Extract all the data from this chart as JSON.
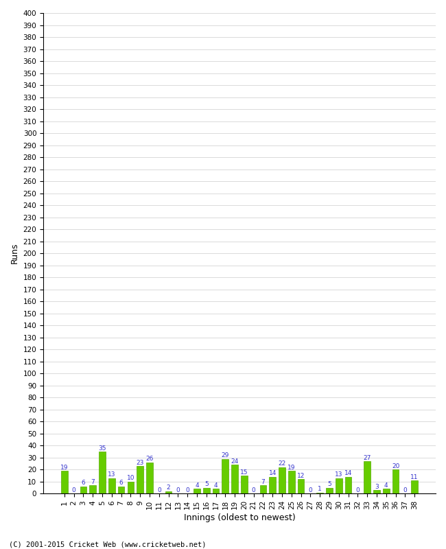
{
  "values": [
    19,
    0,
    6,
    7,
    35,
    13,
    6,
    10,
    23,
    26,
    0,
    2,
    0,
    0,
    4,
    5,
    4,
    29,
    24,
    15,
    0,
    7,
    14,
    22,
    19,
    12,
    0,
    1,
    5,
    13,
    14,
    0,
    27,
    3,
    4,
    20,
    0,
    11
  ],
  "categories": [
    "1",
    "2",
    "3",
    "4",
    "5",
    "6",
    "7",
    "8",
    "9",
    "10",
    "11",
    "12",
    "13",
    "14",
    "15",
    "16",
    "17",
    "18",
    "19",
    "20",
    "21",
    "22",
    "23",
    "24",
    "25",
    "26",
    "27",
    "28",
    "29",
    "30",
    "31",
    "32",
    "33",
    "34",
    "35",
    "36",
    "37",
    "38"
  ],
  "bar_color": "#66cc00",
  "bar_edge_color": "#55aa00",
  "label_color": "#3333cc",
  "xlabel": "Innings (oldest to newest)",
  "ylabel": "Runs",
  "ylim": [
    0,
    400
  ],
  "ytick_step": 10,
  "background_color": "#ffffff",
  "grid_color": "#cccccc",
  "footer": "(C) 2001-2015 Cricket Web (www.cricketweb.net)"
}
